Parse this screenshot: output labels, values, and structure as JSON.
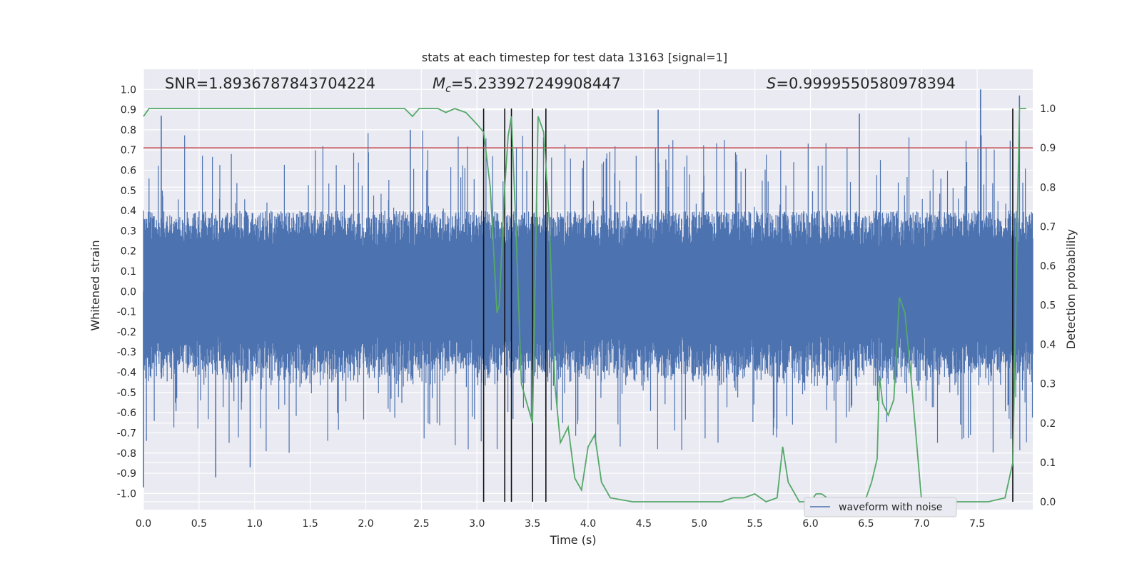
{
  "chart_data": {
    "type": "line",
    "title": "stats at each timestep for test data 13163 [signal=1]",
    "xlabel": "Time (s)",
    "ylabel_left": "Whitened strain",
    "ylabel_right": "Detection probability",
    "xlim": [
      0.0,
      8.0
    ],
    "ylim_left": [
      -1.08,
      1.1
    ],
    "ylim_right": [
      -0.02,
      1.1
    ],
    "xticks": [
      0.0,
      0.5,
      1.0,
      1.5,
      2.0,
      2.5,
      3.0,
      3.5,
      4.0,
      4.5,
      5.0,
      5.5,
      6.0,
      6.5,
      7.0,
      7.5
    ],
    "xtick_labels": [
      "0.0",
      "0.5",
      "1.0",
      "1.5",
      "2.0",
      "2.5",
      "3.0",
      "3.5",
      "4.0",
      "4.5",
      "5.0",
      "5.5",
      "6.0",
      "6.5",
      "7.0",
      "7.5"
    ],
    "yticks_left": [
      1.0,
      0.9,
      0.8,
      0.7,
      0.6,
      0.5,
      0.4,
      0.3,
      0.2,
      0.1,
      0.0,
      -0.1,
      -0.2,
      -0.3,
      -0.4,
      -0.5,
      -0.6,
      -0.7,
      -0.8,
      -0.9,
      -1.0
    ],
    "ytick_labels_left": [
      "1.0",
      "0.9",
      "0.8",
      "0.7",
      "0.6",
      "0.5",
      "0.4",
      "0.3",
      "0.2",
      "0.1",
      "0.0",
      "-0.1",
      "-0.2",
      "-0.3",
      "-0.4",
      "-0.5",
      "-0.6",
      "-0.7",
      "-0.8",
      "-0.9",
      "-1.0"
    ],
    "yticks_right": [
      1.0,
      0.9,
      0.8,
      0.7,
      0.6,
      0.5,
      0.4,
      0.3,
      0.2,
      0.1,
      0.0
    ],
    "ytick_labels_right": [
      "1.0",
      "0.9",
      "0.8",
      "0.7",
      "0.6",
      "0.5",
      "0.4",
      "0.3",
      "0.2",
      "0.1",
      "0.0"
    ],
    "annotations": {
      "snr": "SNR=1.8936787843704224",
      "mc_symbol": "M",
      "mc_subscript": "c",
      "mc_value": "=5.233927249908447",
      "s_symbol": "S",
      "s_value": "=0.9999550580978394"
    },
    "threshold": {
      "value": 0.9,
      "axis": "right",
      "color": "#c44e52"
    },
    "vertical_markers": [
      3.06,
      3.25,
      3.31,
      3.5,
      3.62,
      7.82
    ],
    "legend": {
      "label": "waveform with noise",
      "placement": "lower-right"
    },
    "series": [
      {
        "name": "waveform with noise",
        "axis": "left",
        "color": "#4c72b0",
        "description": "noisy whitened strain, dense band roughly +/-0.4 with spikes",
        "samples": 2400,
        "band_amplitude": 0.4,
        "peak_events": [
          {
            "x": 0.16,
            "y": 0.87
          },
          {
            "x": 0.65,
            "y": -0.92
          },
          {
            "x": 0.96,
            "y": -0.87
          },
          {
            "x": 4.63,
            "y": 0.9
          },
          {
            "x": 7.53,
            "y": 1.0
          },
          {
            "x": 7.88,
            "y": 0.97
          },
          {
            "x": 6.44,
            "y": 0.88
          },
          {
            "x": 2.4,
            "y": 0.8
          },
          {
            "x": 0.0,
            "y": -0.97
          }
        ]
      },
      {
        "name": "detection probability",
        "axis": "right",
        "color": "#55a868",
        "x": [
          0.0,
          0.05,
          0.1,
          2.35,
          2.42,
          2.48,
          2.55,
          2.65,
          2.72,
          2.8,
          2.9,
          3.0,
          3.06,
          3.12,
          3.18,
          3.2,
          3.25,
          3.28,
          3.31,
          3.35,
          3.4,
          3.45,
          3.5,
          3.55,
          3.6,
          3.65,
          3.7,
          3.75,
          3.82,
          3.88,
          3.94,
          4.0,
          4.06,
          4.12,
          4.2,
          4.4,
          5.0,
          5.2,
          5.3,
          5.4,
          5.5,
          5.55,
          5.6,
          5.7,
          5.75,
          5.8,
          5.9,
          6.0,
          6.05,
          6.1,
          6.2,
          6.4,
          6.5,
          6.55,
          6.6,
          6.62,
          6.65,
          6.7,
          6.75,
          6.8,
          6.85,
          6.9,
          7.0,
          7.1,
          7.6,
          7.75,
          7.82,
          7.86,
          7.88,
          7.9,
          7.94
        ],
        "values": [
          0.98,
          1.0,
          1.0,
          1.0,
          0.98,
          1.0,
          1.0,
          1.0,
          0.99,
          1.0,
          0.99,
          0.96,
          0.94,
          0.8,
          0.48,
          0.5,
          0.8,
          0.93,
          0.98,
          0.7,
          0.3,
          0.25,
          0.2,
          0.98,
          0.94,
          0.72,
          0.3,
          0.15,
          0.19,
          0.06,
          0.03,
          0.14,
          0.17,
          0.05,
          0.01,
          0.0,
          0.0,
          0.0,
          0.01,
          0.01,
          0.02,
          0.01,
          0.0,
          0.01,
          0.14,
          0.05,
          0.0,
          0.0,
          0.02,
          0.02,
          0.0,
          0.0,
          0.01,
          0.05,
          0.11,
          0.32,
          0.25,
          0.22,
          0.26,
          0.52,
          0.48,
          0.33,
          0.0,
          0.0,
          0.0,
          0.01,
          0.1,
          0.7,
          1.0,
          1.0,
          1.0
        ]
      }
    ]
  }
}
